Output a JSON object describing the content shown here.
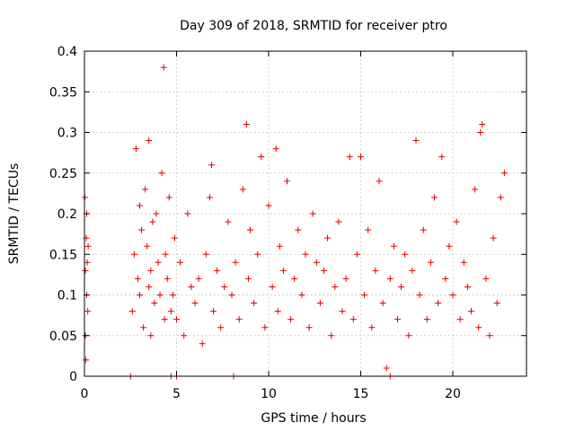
{
  "chart_data": {
    "type": "scatter",
    "title": "Day 309 of 2018, SRMTID for receiver ptro",
    "xlabel": "GPS time / hours",
    "ylabel": "SRMTID / TECUs",
    "xlim": [
      0,
      24
    ],
    "ylim": [
      0,
      0.4
    ],
    "xticks": [
      0,
      5,
      10,
      15,
      20
    ],
    "yticks": [
      0,
      0.05,
      0.1,
      0.15,
      0.2,
      0.25,
      0.3,
      0.35,
      0.4
    ],
    "xtick_labels": [
      "0",
      "5",
      "10",
      "15",
      "20"
    ],
    "ytick_labels": [
      "0",
      "0.05",
      "0.1",
      "0.15",
      "0.2",
      "0.25",
      "0.3",
      "0.35",
      "0.4"
    ],
    "grid": true,
    "marker": "+",
    "color": "#e00000",
    "series": [
      {
        "name": "SRMTID",
        "x": [
          0.02,
          0.05,
          0.05,
          0.08,
          0.1,
          0.12,
          0.12,
          0.15,
          0.18,
          0.2,
          2.6,
          2.7,
          2.8,
          2.9,
          3.0,
          3.0,
          3.1,
          3.2,
          3.3,
          3.4,
          3.5,
          3.5,
          3.6,
          3.6,
          3.7,
          3.8,
          3.9,
          4.0,
          4.1,
          4.2,
          4.3,
          4.35,
          4.4,
          4.5,
          4.6,
          4.7,
          4.8,
          4.9,
          5.0,
          5.2,
          5.4,
          5.6,
          5.8,
          6.0,
          6.2,
          6.4,
          6.6,
          6.8,
          6.9,
          7.0,
          7.2,
          7.4,
          7.6,
          7.8,
          8.0,
          8.2,
          8.4,
          8.6,
          8.8,
          8.9,
          9.0,
          9.2,
          9.4,
          9.6,
          9.8,
          10.0,
          10.2,
          10.4,
          10.5,
          10.6,
          10.8,
          11.0,
          11.2,
          11.4,
          11.6,
          11.8,
          12.0,
          12.2,
          12.4,
          12.6,
          12.8,
          13.0,
          13.2,
          13.4,
          13.6,
          13.8,
          14.0,
          14.2,
          14.4,
          14.6,
          14.8,
          15.0,
          15.2,
          15.4,
          15.6,
          15.8,
          16.0,
          16.2,
          16.4,
          16.6,
          16.8,
          17.0,
          17.2,
          17.4,
          17.6,
          17.8,
          18.0,
          18.2,
          18.4,
          18.6,
          18.8,
          19.0,
          19.2,
          19.4,
          19.6,
          19.8,
          20.0,
          20.2,
          20.4,
          20.6,
          20.8,
          21.0,
          21.2,
          21.4,
          21.5,
          21.6,
          21.8,
          22.0,
          22.2,
          22.4,
          22.6,
          22.8,
          2.5,
          4.7,
          5.0,
          8.1,
          16.6
        ],
        "y": [
          0.22,
          0.05,
          0.13,
          0.02,
          0.17,
          0.1,
          0.2,
          0.14,
          0.08,
          0.16,
          0.08,
          0.15,
          0.28,
          0.12,
          0.1,
          0.21,
          0.18,
          0.06,
          0.23,
          0.16,
          0.29,
          0.11,
          0.13,
          0.05,
          0.19,
          0.09,
          0.2,
          0.14,
          0.1,
          0.25,
          0.38,
          0.07,
          0.15,
          0.12,
          0.22,
          0.08,
          0.1,
          0.17,
          0.07,
          0.14,
          0.05,
          0.2,
          0.11,
          0.09,
          0.12,
          0.04,
          0.15,
          0.22,
          0.26,
          0.08,
          0.13,
          0.06,
          0.11,
          0.19,
          0.1,
          0.14,
          0.07,
          0.23,
          0.31,
          0.12,
          0.18,
          0.09,
          0.15,
          0.27,
          0.06,
          0.21,
          0.11,
          0.28,
          0.08,
          0.16,
          0.13,
          0.24,
          0.07,
          0.12,
          0.18,
          0.1,
          0.15,
          0.06,
          0.2,
          0.14,
          0.09,
          0.13,
          0.17,
          0.05,
          0.11,
          0.19,
          0.08,
          0.12,
          0.27,
          0.07,
          0.15,
          0.27,
          0.1,
          0.18,
          0.06,
          0.13,
          0.24,
          0.09,
          0.01,
          0.12,
          0.16,
          0.07,
          0.11,
          0.15,
          0.05,
          0.13,
          0.29,
          0.1,
          0.18,
          0.07,
          0.14,
          0.22,
          0.09,
          0.27,
          0.12,
          0.16,
          0.1,
          0.19,
          0.07,
          0.14,
          0.11,
          0.08,
          0.23,
          0.06,
          0.3,
          0.31,
          0.12,
          0.05,
          0.17,
          0.09,
          0.22,
          0.25,
          0,
          0,
          0,
          0,
          0
        ]
      }
    ]
  }
}
